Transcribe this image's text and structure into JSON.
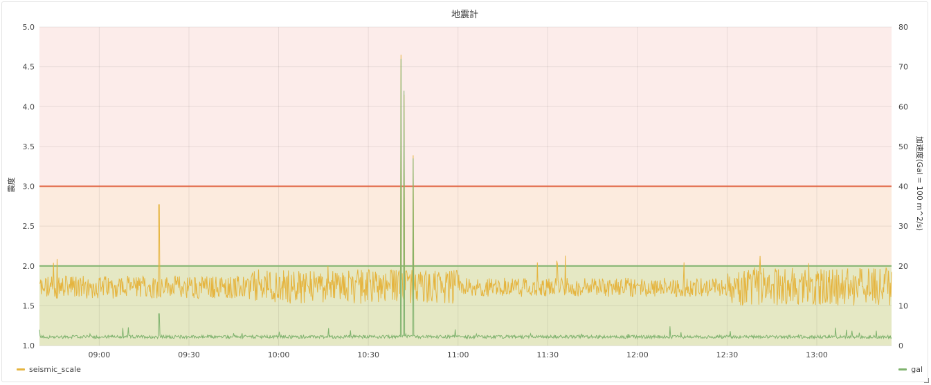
{
  "chart_data": {
    "type": "line",
    "title": "地震計",
    "ylabel_left": "震度",
    "ylabel_right": "加速度(Gal = 100 m^2/s)",
    "y_left_range": [
      1.0,
      5.0
    ],
    "y_right_range": [
      0,
      80
    ],
    "y_left_ticks": [
      "1.0",
      "1.5",
      "2.0",
      "2.5",
      "3.0",
      "3.5",
      "4.0",
      "4.5",
      "5.0"
    ],
    "y_right_ticks": [
      "0",
      "10",
      "20",
      "30",
      "40",
      "50",
      "60",
      "70",
      "80"
    ],
    "x_ticks": [
      "09:00",
      "09:30",
      "10:00",
      "10:30",
      "11:00",
      "11:30",
      "12:00",
      "12:30",
      "13:00"
    ],
    "x_range": [
      "08:40",
      "13:25"
    ],
    "thresholds": [
      {
        "axis": "left",
        "value": 3.0,
        "color": "#e0603e"
      },
      {
        "axis": "left",
        "value": 2.0,
        "color": "#7eb26d"
      }
    ],
    "bands": [
      {
        "from": 1.0,
        "to": 2.0,
        "color": "#e5e8c4"
      },
      {
        "from": 2.0,
        "to": 3.0,
        "color": "#fcebde"
      },
      {
        "from": 3.0,
        "to": 5.0,
        "color": "#fcecea"
      }
    ],
    "grid": true,
    "series": [
      {
        "name": "seismic_scale",
        "axis": "left",
        "color": "#e5b43e",
        "typical_range": [
          1.5,
          2.0
        ],
        "spikes": [
          {
            "time": "09:20",
            "value": 2.77
          },
          {
            "time": "10:41",
            "value": 4.65
          },
          {
            "time": "10:42",
            "value": 4.15
          },
          {
            "time": "10:45",
            "value": 3.39
          }
        ]
      },
      {
        "name": "gal",
        "axis": "right",
        "color": "#7eb26d",
        "typical_value": 2.2,
        "spikes": [
          {
            "time": "09:20",
            "value": 8
          },
          {
            "time": "10:41",
            "value": 72
          },
          {
            "time": "10:42",
            "value": 64
          },
          {
            "time": "10:45",
            "value": 47
          }
        ]
      }
    ],
    "legend": {
      "left": "seismic_scale",
      "right": "gal"
    }
  }
}
